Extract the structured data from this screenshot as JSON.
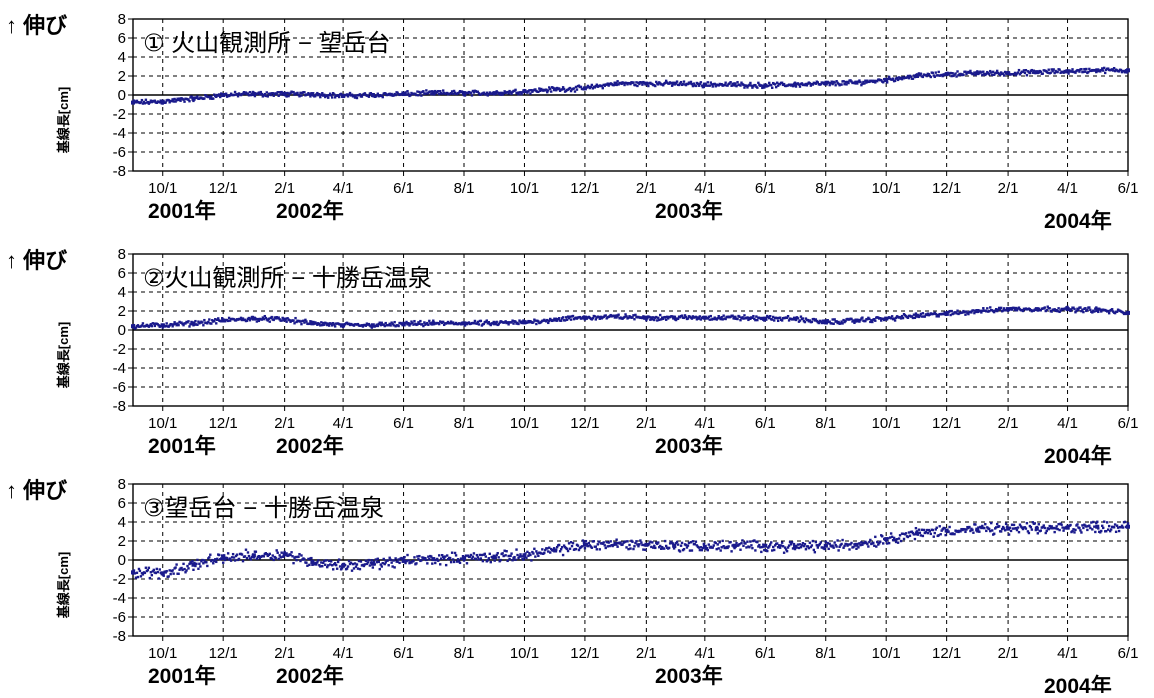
{
  "colors": {
    "data": "#1a1a8c",
    "grid": "#000000",
    "axis": "#000000"
  },
  "x_tick_labels": [
    "10/1",
    "12/1",
    "2/1",
    "4/1",
    "6/1",
    "8/1",
    "10/1",
    "12/1",
    "2/1",
    "4/1",
    "6/1",
    "8/1",
    "10/1",
    "12/1",
    "2/1",
    "4/1",
    "6/1"
  ],
  "y_tick_labels": [
    "8",
    "6",
    "4",
    "2",
    "0",
    "-2",
    "-4",
    "-6",
    "-8"
  ],
  "year_labels": [
    "2001年",
    "2002年",
    "2003年",
    "2004年"
  ],
  "chart_data": [
    {
      "type": "scatter",
      "title": "① 火山観測所 − 望岳台",
      "up_label": "↑ 伸び",
      "ylabel": "基線長[cm]",
      "ylim": [
        -8,
        8
      ],
      "x_range": [
        "2001-09-01",
        "2004-06-01"
      ],
      "grid": true,
      "zero_line": true,
      "x": [
        "2001-09-01",
        "2001-10-01",
        "2001-11-01",
        "2001-12-01",
        "2002-01-01",
        "2002-02-01",
        "2002-03-01",
        "2002-04-01",
        "2002-05-01",
        "2002-06-01",
        "2002-07-01",
        "2002-08-01",
        "2002-09-01",
        "2002-10-01",
        "2002-11-01",
        "2002-12-01",
        "2003-01-01",
        "2003-02-01",
        "2003-03-01",
        "2003-04-01",
        "2003-05-01",
        "2003-06-01",
        "2003-07-01",
        "2003-08-01",
        "2003-09-01",
        "2003-10-01",
        "2003-11-01",
        "2003-12-01",
        "2004-01-01",
        "2004-02-01",
        "2004-03-01",
        "2004-04-01",
        "2004-05-01",
        "2004-06-01"
      ],
      "values": [
        -0.8,
        -0.7,
        -0.4,
        0.0,
        0.1,
        0.1,
        0.1,
        -0.1,
        0.0,
        0.1,
        0.2,
        0.2,
        0.2,
        0.4,
        0.6,
        0.7,
        1.2,
        1.2,
        1.2,
        1.1,
        1.1,
        1.0,
        1.1,
        1.2,
        1.3,
        1.6,
        2.0,
        2.2,
        2.3,
        2.3,
        2.4,
        2.5,
        2.6,
        2.6
      ]
    },
    {
      "type": "scatter",
      "title": "②火山観測所 − 十勝岳温泉",
      "up_label": "↑ 伸び",
      "ylabel": "基線長[cm]",
      "ylim": [
        -8,
        8
      ],
      "x_range": [
        "2001-09-01",
        "2004-06-01"
      ],
      "grid": true,
      "zero_line": true,
      "x": [
        "2001-09-01",
        "2001-10-01",
        "2001-11-01",
        "2001-12-01",
        "2002-01-01",
        "2002-02-01",
        "2002-03-01",
        "2002-04-01",
        "2002-05-01",
        "2002-06-01",
        "2002-07-01",
        "2002-08-01",
        "2002-09-01",
        "2002-10-01",
        "2002-11-01",
        "2002-12-01",
        "2003-01-01",
        "2003-02-01",
        "2003-03-01",
        "2003-04-01",
        "2003-05-01",
        "2003-06-01",
        "2003-07-01",
        "2003-08-01",
        "2003-09-01",
        "2003-10-01",
        "2003-11-01",
        "2003-12-01",
        "2004-01-01",
        "2004-02-01",
        "2004-03-01",
        "2004-04-01",
        "2004-05-01",
        "2004-06-01"
      ],
      "values": [
        0.4,
        0.5,
        0.7,
        1.0,
        1.2,
        1.1,
        0.7,
        0.5,
        0.5,
        0.6,
        0.7,
        0.7,
        0.7,
        0.8,
        1.1,
        1.3,
        1.4,
        1.3,
        1.3,
        1.3,
        1.3,
        1.2,
        1.2,
        0.8,
        1.0,
        1.2,
        1.5,
        1.7,
        2.0,
        2.2,
        2.2,
        2.2,
        2.1,
        1.8
      ]
    },
    {
      "type": "scatter",
      "title": "③望岳台 − 十勝岳温泉",
      "up_label": "↑ 伸び",
      "ylabel": "基線長[cm]",
      "ylim": [
        -8,
        8
      ],
      "x_range": [
        "2001-09-01",
        "2004-06-01"
      ],
      "grid": true,
      "zero_line": true,
      "x": [
        "2001-09-01",
        "2001-10-01",
        "2001-11-01",
        "2001-12-01",
        "2002-01-01",
        "2002-02-01",
        "2002-03-01",
        "2002-04-01",
        "2002-05-01",
        "2002-06-01",
        "2002-07-01",
        "2002-08-01",
        "2002-09-01",
        "2002-10-01",
        "2002-11-01",
        "2002-12-01",
        "2003-01-01",
        "2003-02-01",
        "2003-03-01",
        "2003-04-01",
        "2003-05-01",
        "2003-06-01",
        "2003-07-01",
        "2003-08-01",
        "2003-09-01",
        "2003-10-01",
        "2003-11-01",
        "2003-12-01",
        "2004-01-01",
        "2004-02-01",
        "2004-03-01",
        "2004-04-01",
        "2004-05-01",
        "2004-06-01"
      ],
      "values": [
        -1.3,
        -1.4,
        -0.5,
        0.2,
        0.5,
        0.6,
        -0.2,
        -0.6,
        -0.4,
        -0.1,
        0.1,
        0.2,
        0.3,
        0.5,
        1.0,
        1.6,
        1.7,
        1.6,
        1.5,
        1.4,
        1.5,
        1.5,
        1.4,
        1.5,
        1.6,
        2.2,
        2.8,
        3.1,
        3.2,
        3.3,
        3.3,
        3.4,
        3.5,
        3.5
      ]
    }
  ]
}
